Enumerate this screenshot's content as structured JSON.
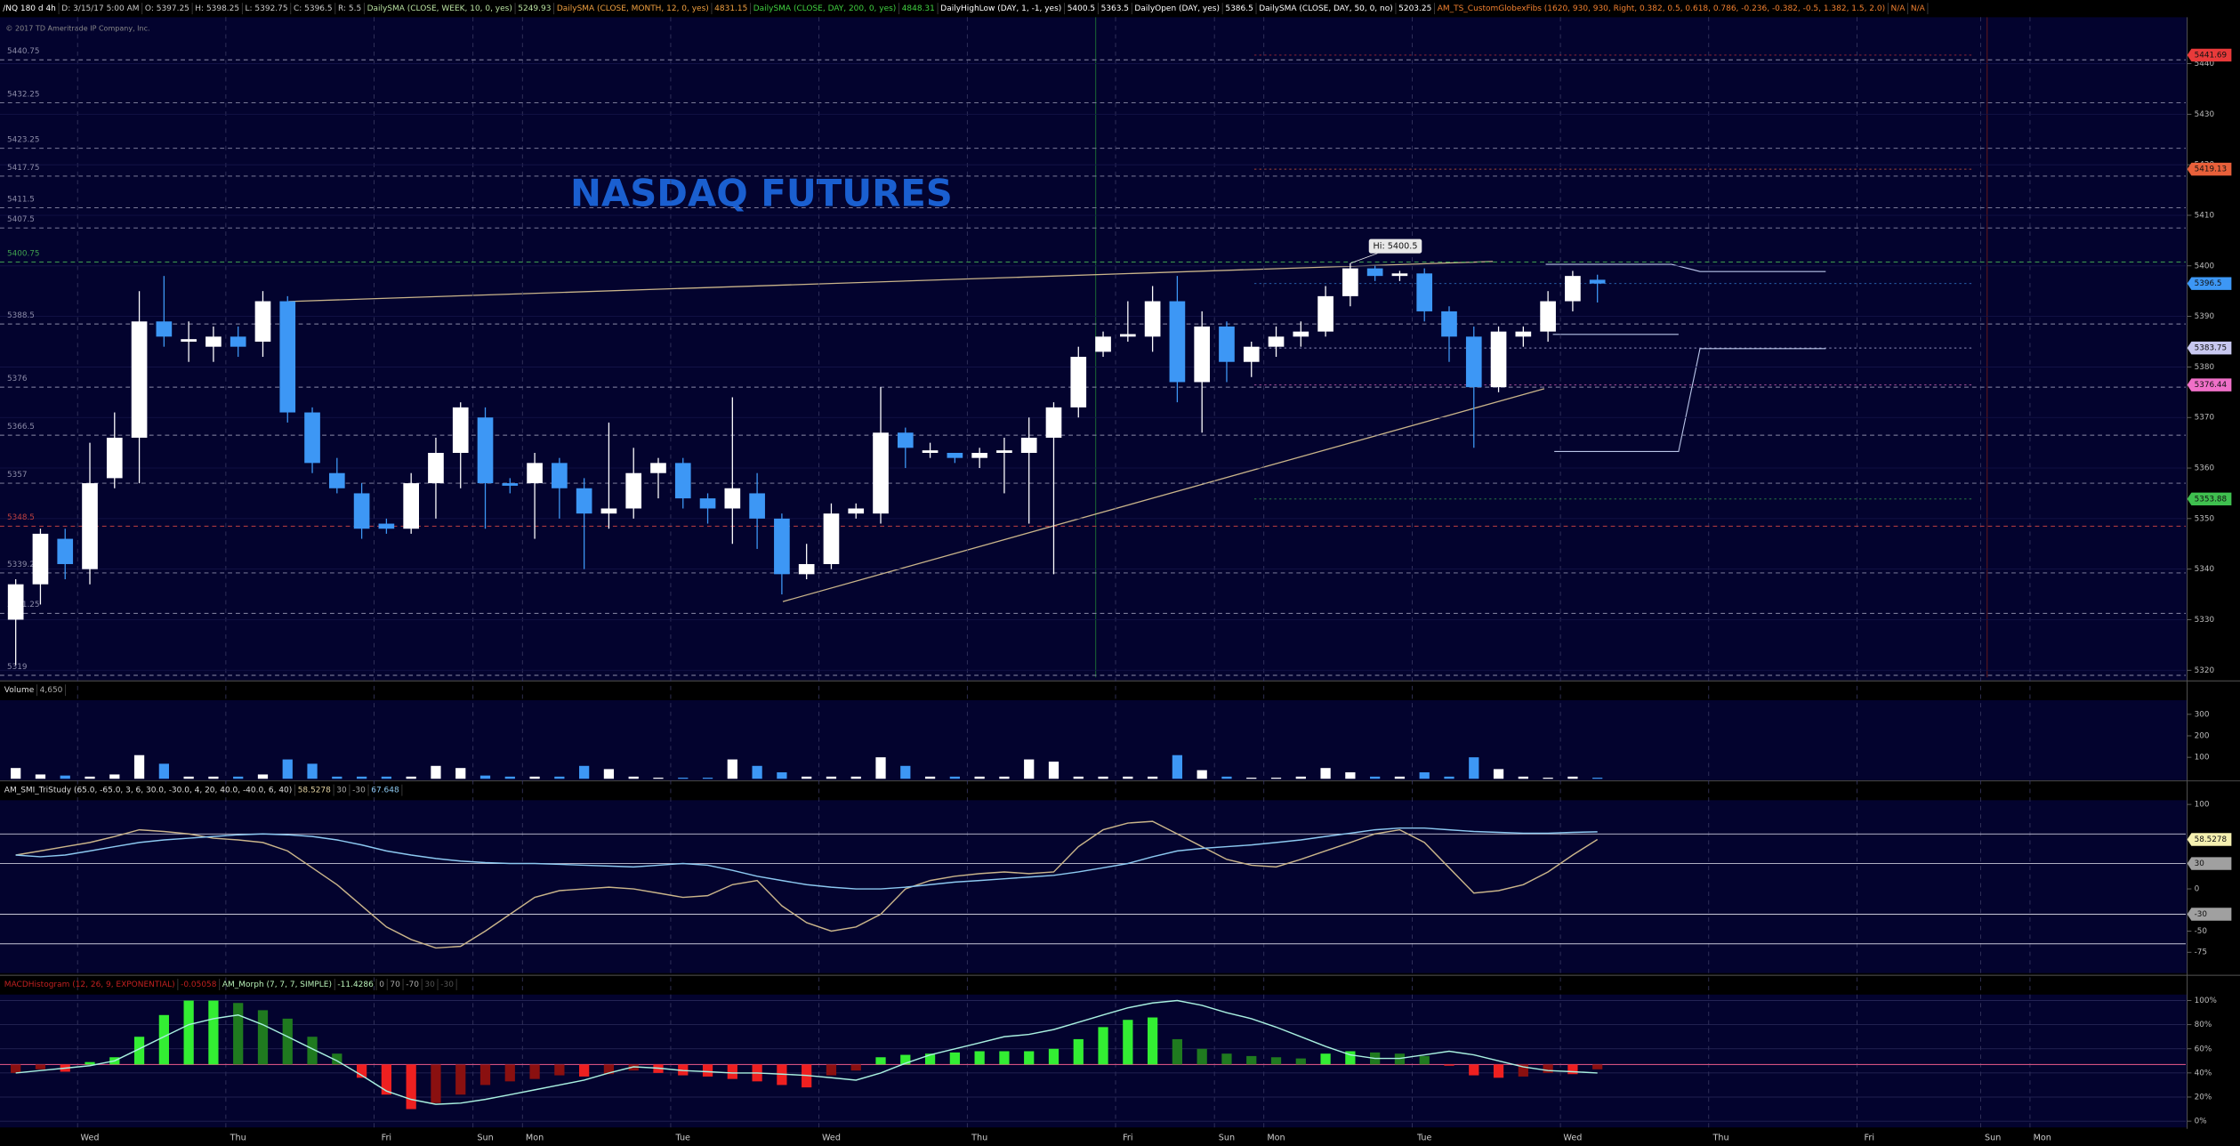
{
  "header": [
    {
      "text": "/NQ 180 d 4h",
      "color": "#ffffff"
    },
    {
      "text": "D: 3/15/17 5:00 AM",
      "color": "#c8c8c8"
    },
    {
      "text": "O: 5397.25",
      "color": "#c8c8c8"
    },
    {
      "text": "H: 5398.25",
      "color": "#c8c8c8"
    },
    {
      "text": "L: 5392.75",
      "color": "#c8c8c8"
    },
    {
      "text": "C: 5396.5",
      "color": "#c8c8c8"
    },
    {
      "text": "R: 5.5",
      "color": "#c8c8c8"
    },
    {
      "text": "DailySMA (CLOSE, WEEK, 10, 0, yes)",
      "color": "#b8e0a0"
    },
    {
      "text": "5249.93",
      "color": "#b8e0a0"
    },
    {
      "text": "DailySMA (CLOSE, MONTH, 12, 0, yes)",
      "color": "#f0a040"
    },
    {
      "text": "4831.15",
      "color": "#f0a040"
    },
    {
      "text": "DailySMA (CLOSE, DAY, 200, 0, yes)",
      "color": "#40d040"
    },
    {
      "text": "4848.31",
      "color": "#40d040"
    },
    {
      "text": "DailyHighLow (DAY, 1, -1, yes)",
      "color": "#ffffff"
    },
    {
      "text": "5400.5",
      "color": "#ffffff"
    },
    {
      "text": "5363.5",
      "color": "#ffffff"
    },
    {
      "text": "DailyOpen (DAY, yes)",
      "color": "#ffffff"
    },
    {
      "text": "5386.5",
      "color": "#ffffff"
    },
    {
      "text": "DailySMA (CLOSE, DAY, 50, 0, no)",
      "color": "#ffffff"
    },
    {
      "text": "5203.25",
      "color": "#ffffff"
    },
    {
      "text": "AM_TS_CustomGlobexFibs (1620, 930, 930, Right, 0.382, 0.5, 0.618, 0.786, -0.236, -0.382, -0.5, 1.382, 1.5, 2.0)",
      "color": "#f08030"
    },
    {
      "text": "N/A",
      "color": "#f08030"
    },
    {
      "text": "N/A",
      "color": "#f08030"
    }
  ],
  "copyright": "© 2017 TD Ameritrade IP Company, Inc.",
  "chart_data": [
    {
      "type": "candlestick",
      "title": "NASDAQ FUTURES",
      "annotation": "Hi: 5400.5",
      "up_color": "#ffffff",
      "down_color": "#3d97f5",
      "grid": true,
      "categories": [
        null,
        null,
        null,
        "Wed",
        null,
        null,
        null,
        null,
        null,
        "Thu",
        null,
        null,
        null,
        null,
        null,
        "Fri",
        null,
        null,
        null,
        "Sun",
        null,
        "Mon",
        null,
        null,
        null,
        null,
        null,
        "Tue",
        null,
        null,
        null,
        null,
        null,
        "Wed",
        null,
        null,
        null,
        null,
        null,
        "Thu",
        null,
        null,
        null,
        null,
        null,
        "Fri",
        null,
        null,
        null,
        "Sun",
        null,
        "Mon",
        null,
        null,
        null,
        null,
        null,
        "Tue",
        null,
        null,
        null,
        null,
        null,
        "Wed",
        null,
        null,
        null,
        null,
        null,
        "Thu",
        null,
        null,
        null,
        null,
        null,
        "Fri",
        null,
        null,
        null,
        null,
        "Sun",
        null,
        "Mon",
        null,
        null,
        null,
        null,
        null
      ],
      "open": [
        5330,
        5337,
        5346,
        5340,
        5358,
        5366,
        5389,
        5385,
        5384,
        5386,
        5385,
        5393,
        5371,
        5359,
        5355,
        5349,
        5348,
        5357,
        5363,
        5370,
        5357,
        5357,
        5361,
        5356,
        5351,
        5352,
        5359,
        5361,
        5354,
        5352,
        5355,
        5350,
        5339,
        5341,
        5351,
        5351,
        5367,
        5363,
        5363,
        5362,
        5363,
        5363,
        5366,
        5372,
        5383,
        5386,
        5386,
        5393,
        5377,
        5388,
        5381,
        5384,
        5386,
        5387,
        5394,
        5399.5,
        5398,
        5398.5,
        5391,
        5386,
        5376,
        5386,
        5387,
        5393,
        5397.25,
        null,
        null,
        null,
        null,
        null,
        null,
        null,
        null,
        null,
        null,
        null,
        null,
        null,
        null,
        null,
        null,
        null,
        null,
        null,
        null,
        null,
        null,
        null
      ],
      "high": [
        5338,
        5348,
        5348,
        5365,
        5371,
        5395,
        5398,
        5389,
        5388,
        5388,
        5395,
        5394,
        5372,
        5362,
        5357,
        5350,
        5359,
        5366,
        5373,
        5372,
        5358,
        5363,
        5362,
        5358,
        5369,
        5364,
        5362,
        5362,
        5355,
        5374,
        5359,
        5351,
        5345,
        5353,
        5353,
        5376,
        5368,
        5365,
        5363,
        5364,
        5366,
        5370,
        5373,
        5384,
        5387,
        5393,
        5396,
        5398,
        5391,
        5389,
        5385,
        5388,
        5389,
        5396,
        5400.5,
        5400,
        5399,
        5399.5,
        5392,
        5388,
        5388,
        5388,
        5395,
        5399,
        5398.25,
        null,
        null,
        null,
        null,
        null,
        null,
        null,
        null,
        null,
        null,
        null,
        null,
        null,
        null,
        null,
        null,
        null,
        null,
        null,
        null,
        null,
        null,
        null
      ],
      "low": [
        5321,
        5333,
        5338,
        5337,
        5356,
        5357,
        5384,
        5381,
        5381,
        5382,
        5382,
        5369,
        5359,
        5355,
        5346,
        5347,
        5347,
        5350,
        5356,
        5348,
        5355,
        5346,
        5350,
        5340,
        5348,
        5350,
        5354,
        5352,
        5349,
        5345,
        5344,
        5335,
        5338,
        5340,
        5350,
        5349,
        5360,
        5362,
        5361,
        5360,
        5355,
        5349,
        5339,
        5370,
        5382,
        5385,
        5383,
        5373,
        5367,
        5377,
        5378,
        5382,
        5384,
        5386,
        5392,
        5397,
        5397,
        5389,
        5381,
        5364,
        5375,
        5384,
        5385,
        5391,
        5392.75,
        null,
        null,
        null,
        null,
        null,
        null,
        null,
        null,
        null,
        null,
        null,
        null,
        null,
        null,
        null,
        null,
        null,
        null,
        null,
        null,
        null,
        null,
        null
      ],
      "close": [
        5337,
        5347,
        5341,
        5357,
        5366,
        5389,
        5386,
        5385.5,
        5386,
        5384,
        5393,
        5371,
        5361,
        5356,
        5348,
        5348,
        5357,
        5363,
        5372,
        5357,
        5356.5,
        5361,
        5356,
        5351,
        5352,
        5359,
        5361,
        5354,
        5352,
        5356,
        5350,
        5339,
        5341,
        5351,
        5352,
        5367,
        5364,
        5363.5,
        5362,
        5363,
        5363.5,
        5366,
        5372,
        5382,
        5386,
        5386.5,
        5393,
        5377,
        5388,
        5381,
        5384,
        5386,
        5387,
        5394,
        5399.5,
        5398,
        5398.5,
        5391,
        5386,
        5376,
        5387,
        5387,
        5393,
        5398,
        5396.5,
        null,
        null,
        null,
        null,
        null,
        null,
        null,
        null,
        null,
        null,
        null,
        null,
        null,
        null,
        null,
        null,
        null,
        null,
        null,
        null,
        null,
        null,
        null
      ],
      "ylim": [
        5318.6,
        5449.2
      ],
      "yticks": [
        5320,
        5330,
        5340,
        5350,
        5360,
        5370,
        5380,
        5390,
        5400,
        5410,
        5420,
        5430,
        5440
      ],
      "levels": [
        {
          "value": 5440.75,
          "color": "#8c8ca8"
        },
        {
          "value": 5432.25,
          "color": "#8c8ca8"
        },
        {
          "value": 5423.25,
          "color": "#8c8ca8"
        },
        {
          "value": 5417.75,
          "color": "#8c8ca8"
        },
        {
          "value": 5411.5,
          "color": "#8c8ca8"
        },
        {
          "value": 5407.5,
          "color": "#8c8ca8"
        },
        {
          "value": 5400.75,
          "color": "#3fa04f"
        },
        {
          "value": 5388.5,
          "color": "#8c8ca8"
        },
        {
          "value": 5376,
          "color": "#8c8ca8"
        },
        {
          "value": 5366.5,
          "color": "#8c8ca8"
        },
        {
          "value": 5357,
          "color": "#8c8ca8"
        },
        {
          "value": 5348.5,
          "color": "#c04040"
        },
        {
          "value": 5339.25,
          "color": "#8c8ca8"
        },
        {
          "value": 5331.25,
          "color": "#8c8ca8"
        },
        {
          "value": 5319,
          "color": "#8c8ca8"
        }
      ],
      "badges": [
        {
          "value": 5441.69,
          "color": "#e83a3a"
        },
        {
          "value": 5419.13,
          "color": "#e8603a"
        },
        {
          "value": 5396.5,
          "color": "#3d97f5"
        },
        {
          "value": 5383.75,
          "color": "#c8c8f0"
        },
        {
          "value": 5376.44,
          "color": "#f070c8"
        },
        {
          "value": 5353.88,
          "color": "#3fc04f"
        }
      ]
    },
    {
      "type": "bar",
      "legend": [
        {
          "text": "Volume",
          "color": "#dddddd"
        },
        {
          "text": "4,650",
          "color": "#aaaaaa"
        }
      ],
      "up_color": "#ffffff",
      "down_color": "#3d97f5",
      "values": [
        50,
        20,
        15,
        10,
        20,
        110,
        70,
        10,
        10,
        10,
        20,
        90,
        70,
        10,
        10,
        10,
        10,
        60,
        50,
        15,
        10,
        10,
        10,
        60,
        45,
        10,
        5,
        5,
        5,
        90,
        60,
        30,
        10,
        10,
        10,
        100,
        60,
        10,
        10,
        10,
        10,
        90,
        80,
        10,
        10,
        10,
        10,
        110,
        40,
        10,
        5,
        5,
        10,
        50,
        30,
        10,
        10,
        30,
        10,
        100,
        45,
        10,
        5,
        10,
        5
      ],
      "ylim": [
        0,
        366
      ],
      "yticks": [
        100,
        200,
        300
      ]
    },
    {
      "type": "line",
      "legend": [
        {
          "text": "AM_SMI_TriStudy (65.0, -65.0, 3, 6, 30.0, -30.0, 4, 20, 40.0, -40.0, 6, 40)",
          "color": "#dddddd"
        },
        {
          "text": "58.5278",
          "color": "#e0d0a0"
        },
        {
          "text": "30",
          "color": "#aaaaaa"
        },
        {
          "text": "-30",
          "color": "#aaaaaa"
        },
        {
          "text": "67.648",
          "color": "#8cc8f0"
        }
      ],
      "series": [
        {
          "color": "#c9b48a",
          "values": [
            40,
            45,
            50,
            55,
            62,
            70,
            68,
            65,
            60,
            58,
            55,
            45,
            25,
            5,
            -20,
            -45,
            -60,
            -70,
            -68,
            -50,
            -30,
            -10,
            -2,
            0,
            2,
            0,
            -5,
            -10,
            -8,
            5,
            10,
            -20,
            -40,
            -50,
            -45,
            -30,
            0,
            10,
            15,
            18,
            20,
            18,
            20,
            50,
            70,
            78,
            80,
            65,
            50,
            35,
            28,
            26,
            35,
            45,
            55,
            65,
            70,
            55,
            25,
            -5,
            -2,
            5,
            20,
            40,
            58.5278
          ]
        },
        {
          "color": "#8cc8f0",
          "values": [
            40,
            38,
            40,
            45,
            50,
            55,
            58,
            60,
            62,
            64,
            65,
            64,
            62,
            58,
            52,
            45,
            40,
            36,
            33,
            31,
            30,
            30,
            29,
            28,
            27,
            26,
            28,
            30,
            28,
            22,
            15,
            10,
            5,
            2,
            0,
            0,
            2,
            5,
            8,
            10,
            12,
            14,
            16,
            20,
            25,
            30,
            38,
            45,
            48,
            50,
            52,
            55,
            58,
            62,
            66,
            70,
            72,
            72,
            70,
            68,
            67,
            66,
            66,
            67,
            67.648
          ]
        }
      ],
      "levels": [
        65,
        30,
        -30,
        -65
      ],
      "badges": [
        {
          "value": 58.5278,
          "color": "#f5f0b0"
        },
        {
          "value": 30,
          "color": "#a0a0a0"
        },
        {
          "value": -30,
          "color": "#a0a0a0"
        }
      ],
      "ylim": [
        -98,
        105
      ],
      "yticks": [
        100,
        0,
        -50,
        -75
      ]
    },
    {
      "type": "bar",
      "legend": [
        {
          "text": "MACDHistogram (12, 26, 9, EXPONENTIAL)",
          "color": "#c02020"
        },
        {
          "text": "-0.05058",
          "color": "#c02020"
        },
        {
          "text": "AM_Morph (7, 7, 7, SIMPLE)",
          "color": "#b8f0b8"
        },
        {
          "text": "-11.4286",
          "color": "#b8f0b8"
        },
        {
          "text": "0",
          "color": "#aaaaaa"
        },
        {
          "text": "70",
          "color": "#aaaaaa"
        },
        {
          "text": "-70",
          "color": "#aaaaaa"
        },
        {
          "text": "30",
          "color": "#555555"
        },
        {
          "text": "-30",
          "color": "#555555"
        }
      ],
      "base": 47,
      "base_color": "#d05080",
      "colors": [
        "#33ee33",
        "#1f7a1f",
        "#ee2020",
        "#8a1010"
      ],
      "values": [
        40,
        43,
        41,
        49,
        53,
        70,
        88,
        100,
        100,
        98,
        92,
        85,
        70,
        56,
        36,
        22,
        10,
        15,
        22,
        30,
        33,
        35,
        38,
        37,
        39,
        42,
        40,
        38,
        37,
        35,
        33,
        30,
        28,
        38,
        42,
        53,
        55,
        56,
        57,
        58,
        58,
        58,
        60,
        68,
        78,
        84,
        86,
        68,
        60,
        56,
        54,
        53,
        52,
        56,
        58,
        57,
        56,
        54,
        46,
        38,
        36,
        37,
        40,
        39,
        43
      ],
      "series": [
        {
          "color": "#a8f0e0",
          "values": [
            40,
            42,
            44,
            46,
            50,
            60,
            70,
            80,
            85,
            88,
            80,
            70,
            60,
            50,
            38,
            25,
            18,
            14,
            15,
            18,
            22,
            26,
            30,
            34,
            40,
            45,
            44,
            42,
            41,
            40,
            40,
            39,
            38,
            36,
            34,
            40,
            48,
            55,
            60,
            65,
            70,
            72,
            76,
            82,
            88,
            94,
            98,
            100,
            96,
            90,
            85,
            78,
            70,
            62,
            55,
            52,
            52,
            55,
            58,
            55,
            50,
            45,
            42,
            41,
            40
          ]
        }
      ],
      "ylim": [
        -4,
        105
      ],
      "yticks": [
        {
          "value": 0,
          "label": "0%"
        },
        {
          "value": 20,
          "label": "20%"
        },
        {
          "value": 40,
          "label": "40%"
        },
        {
          "value": 60,
          "label": "60%"
        },
        {
          "value": 80,
          "label": "80%"
        },
        {
          "value": 100,
          "label": "100%"
        }
      ]
    }
  ]
}
